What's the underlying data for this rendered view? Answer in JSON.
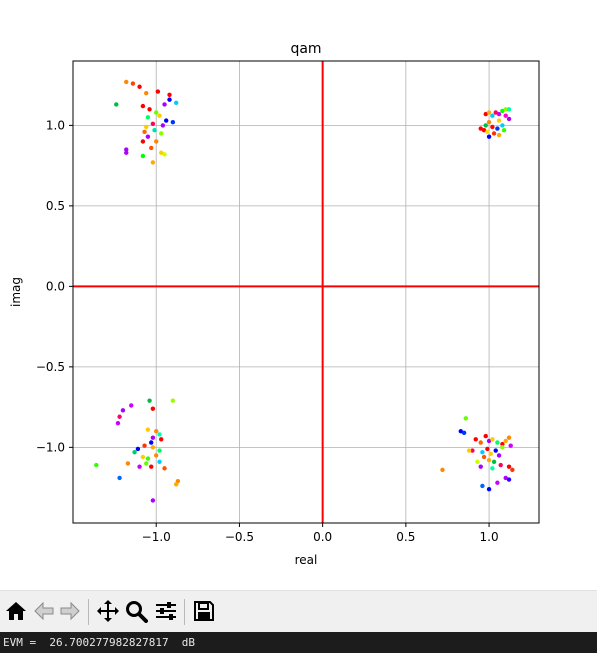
{
  "chart_data": {
    "type": "scatter",
    "title": "qam",
    "xlabel": "real",
    "ylabel": "imag",
    "xlim": [
      -1.5,
      1.3
    ],
    "ylim": [
      -1.47,
      1.4
    ],
    "xticks": [
      -1.0,
      -0.5,
      0.0,
      0.5,
      1.0
    ],
    "xtick_labels": [
      "−1.0",
      "−0.5",
      "0.0",
      "0.5",
      "1.0"
    ],
    "yticks": [
      1.0,
      0.5,
      0.0,
      -0.5,
      -1.0
    ],
    "ytick_labels": [
      "1.0",
      "0.5",
      "0.0",
      "−0.5",
      "−1.0"
    ],
    "grid": true,
    "reference_lines": [
      {
        "axis": "x",
        "value": 0.0,
        "color": "#ff0000"
      },
      {
        "axis": "y",
        "value": 0.0,
        "color": "#ff0000"
      }
    ],
    "clusters": [
      {
        "name": "top-left",
        "center": [
          -1.0,
          1.0
        ]
      },
      {
        "name": "top-right",
        "center": [
          1.0,
          1.0
        ]
      },
      {
        "name": "bottom-left",
        "center": [
          -1.0,
          -1.0
        ]
      },
      {
        "name": "bottom-right",
        "center": [
          1.0,
          -1.0
        ]
      }
    ],
    "points": [
      [
        -1.18,
        1.27,
        "#ff8800"
      ],
      [
        -1.14,
        1.26,
        "#ff4400"
      ],
      [
        -1.1,
        1.24,
        "#ff0000"
      ],
      [
        -1.24,
        1.13,
        "#00bb44"
      ],
      [
        -1.06,
        1.2,
        "#ff8800"
      ],
      [
        -0.99,
        1.21,
        "#ff0000"
      ],
      [
        -0.92,
        1.19,
        "#ff0000"
      ],
      [
        -0.92,
        1.16,
        "#0000ff"
      ],
      [
        -0.88,
        1.14,
        "#00ccff"
      ],
      [
        -0.95,
        1.13,
        "#aa00ff"
      ],
      [
        -1.08,
        1.12,
        "#ff0000"
      ],
      [
        -1.04,
        1.1,
        "#ff0000"
      ],
      [
        -1.0,
        1.08,
        "#66ff00"
      ],
      [
        -0.98,
        1.06,
        "#ffcc00"
      ],
      [
        -1.05,
        1.05,
        "#00ff66"
      ],
      [
        -0.94,
        1.03,
        "#0000ff"
      ],
      [
        -1.02,
        1.01,
        "#ff0055"
      ],
      [
        -0.96,
        1.0,
        "#aa00ff"
      ],
      [
        -1.06,
        0.99,
        "#ffcc00"
      ],
      [
        -0.9,
        1.02,
        "#0033ff"
      ],
      [
        -1.01,
        0.97,
        "#00ddaa"
      ],
      [
        -1.07,
        0.96,
        "#ff6600"
      ],
      [
        -0.97,
        0.95,
        "#88ff00"
      ],
      [
        -1.05,
        0.93,
        "#aa00ff"
      ],
      [
        -1.08,
        0.9,
        "#ff0000"
      ],
      [
        -1.0,
        0.9,
        "#ff8800"
      ],
      [
        -1.18,
        0.85,
        "#aa00ff"
      ],
      [
        -1.18,
        0.83,
        "#aa00ff"
      ],
      [
        -1.03,
        0.86,
        "#ff5500"
      ],
      [
        -1.08,
        0.81,
        "#00ff00"
      ],
      [
        -1.02,
        0.77,
        "#ffaa00"
      ],
      [
        -0.95,
        0.82,
        "#ccff00"
      ],
      [
        -0.97,
        0.83,
        "#ffcc00"
      ],
      [
        0.95,
        0.98,
        "#ff0000"
      ],
      [
        0.97,
        0.97,
        "#ff0000"
      ],
      [
        0.98,
        1.07,
        "#ff0000"
      ],
      [
        1.0,
        1.08,
        "#ffaa00"
      ],
      [
        1.02,
        1.06,
        "#00ccff"
      ],
      [
        1.04,
        1.08,
        "#ff0055"
      ],
      [
        1.06,
        1.07,
        "#cc00ff"
      ],
      [
        1.08,
        1.09,
        "#00ff00"
      ],
      [
        1.1,
        1.1,
        "#88ff00"
      ],
      [
        1.12,
        1.1,
        "#00ffaa"
      ],
      [
        1.12,
        1.04,
        "#aa00ff"
      ],
      [
        1.06,
        1.03,
        "#ffcc00"
      ],
      [
        1.0,
        1.02,
        "#ff8800"
      ],
      [
        0.98,
        1.0,
        "#00bb44"
      ],
      [
        1.02,
        0.99,
        "#ff0000"
      ],
      [
        1.05,
        0.98,
        "#0033ff"
      ],
      [
        0.99,
        0.96,
        "#ffdd00"
      ],
      [
        1.03,
        0.95,
        "#ff3300"
      ],
      [
        1.0,
        0.93,
        "#0000ff"
      ],
      [
        1.06,
        0.94,
        "#ffaa00"
      ],
      [
        1.09,
        0.97,
        "#33ff00"
      ],
      [
        1.08,
        1.0,
        "#00ccff"
      ],
      [
        1.1,
        1.06,
        "#ff00cc"
      ],
      [
        -1.2,
        -0.77,
        "#aa00ff"
      ],
      [
        -1.15,
        -0.74,
        "#cc00ff"
      ],
      [
        -1.22,
        -0.81,
        "#ff0066"
      ],
      [
        -1.23,
        -0.85,
        "#cc00ff"
      ],
      [
        -1.04,
        -0.71,
        "#00bb44"
      ],
      [
        -1.02,
        -0.76,
        "#ff0000"
      ],
      [
        -0.9,
        -0.71,
        "#99ff00"
      ],
      [
        -1.05,
        -0.89,
        "#ffcc00"
      ],
      [
        -1.0,
        -0.9,
        "#ff8800"
      ],
      [
        -0.98,
        -0.92,
        "#00ffaa"
      ],
      [
        -1.02,
        -0.94,
        "#aa00ff"
      ],
      [
        -0.97,
        -0.95,
        "#ff0000"
      ],
      [
        -1.03,
        -0.97,
        "#0000ff"
      ],
      [
        -1.07,
        -0.99,
        "#ff3300"
      ],
      [
        -1.11,
        -1.01,
        "#0000ff"
      ],
      [
        -1.02,
        -1.0,
        "#ffaa00"
      ],
      [
        -0.98,
        -1.02,
        "#00ff66"
      ],
      [
        -1.0,
        -1.05,
        "#ff8800"
      ],
      [
        -1.08,
        -1.06,
        "#ffcc00"
      ],
      [
        -1.05,
        -1.07,
        "#33ff00"
      ],
      [
        -0.98,
        -1.09,
        "#00ccff"
      ],
      [
        -1.06,
        -1.1,
        "#66ff00"
      ],
      [
        -1.03,
        -1.12,
        "#ff0000"
      ],
      [
        -1.17,
        -1.1,
        "#ff8800"
      ],
      [
        -1.1,
        -1.12,
        "#cc00ff"
      ],
      [
        -0.95,
        -1.13,
        "#ff5500"
      ],
      [
        -1.36,
        -1.11,
        "#33ff00"
      ],
      [
        -1.22,
        -1.19,
        "#0066ff"
      ],
      [
        -0.87,
        -1.21,
        "#ff8800"
      ],
      [
        -0.88,
        -1.23,
        "#ffaa00"
      ],
      [
        -1.02,
        -1.33,
        "#aa00ff"
      ],
      [
        -1.13,
        -1.03,
        "#00cc66"
      ],
      [
        0.72,
        -1.14,
        "#ff8800"
      ],
      [
        0.86,
        -0.82,
        "#66ff00"
      ],
      [
        0.83,
        -0.9,
        "#0000ff"
      ],
      [
        0.85,
        -0.91,
        "#0033ff"
      ],
      [
        0.92,
        -0.95,
        "#ff0000"
      ],
      [
        0.95,
        -0.97,
        "#ff6600"
      ],
      [
        0.98,
        -0.93,
        "#ff0000"
      ],
      [
        1.0,
        -0.96,
        "#aa00ff"
      ],
      [
        1.02,
        -0.95,
        "#ffcc00"
      ],
      [
        1.05,
        -0.97,
        "#00ff66"
      ],
      [
        1.08,
        -0.98,
        "#ff0000"
      ],
      [
        1.1,
        -0.96,
        "#ffaa00"
      ],
      [
        1.12,
        -0.94,
        "#ff8800"
      ],
      [
        1.13,
        -0.99,
        "#cc00ff"
      ],
      [
        0.9,
        -1.02,
        "#ff0055"
      ],
      [
        0.96,
        -1.03,
        "#00ccff"
      ],
      [
        0.99,
        -1.01,
        "#ff0000"
      ],
      [
        1.01,
        -1.04,
        "#ffcc00"
      ],
      [
        1.04,
        -1.02,
        "#0000ff"
      ],
      [
        1.06,
        -1.05,
        "#aa00ff"
      ],
      [
        0.97,
        -1.06,
        "#ff5500"
      ],
      [
        1.0,
        -1.08,
        "#ffaa00"
      ],
      [
        1.03,
        -1.09,
        "#00bb44"
      ],
      [
        0.93,
        -1.09,
        "#ccff00"
      ],
      [
        0.95,
        -1.12,
        "#aa00ff"
      ],
      [
        1.07,
        -1.11,
        "#ff0066"
      ],
      [
        1.12,
        -1.12,
        "#ff0000"
      ],
      [
        1.14,
        -1.14,
        "#ff3300"
      ],
      [
        1.1,
        -1.19,
        "#aa00ff"
      ],
      [
        1.12,
        -1.2,
        "#3300ff"
      ],
      [
        0.96,
        -1.24,
        "#0066ff"
      ],
      [
        1.0,
        -1.26,
        "#0000ff"
      ],
      [
        1.05,
        -1.22,
        "#cc00ff"
      ],
      [
        0.88,
        -1.02,
        "#ffcc00"
      ],
      [
        1.02,
        -1.13,
        "#00ffaa"
      ],
      [
        1.08,
        -1.0,
        "#88ff00"
      ]
    ]
  },
  "toolbar": {
    "buttons": [
      "home-icon",
      "back-icon",
      "forward-icon",
      "pan-icon",
      "zoom-icon",
      "configure-icon",
      "save-icon"
    ]
  },
  "status": {
    "evm_text": "EVM =  26.700277982827817  dB"
  }
}
